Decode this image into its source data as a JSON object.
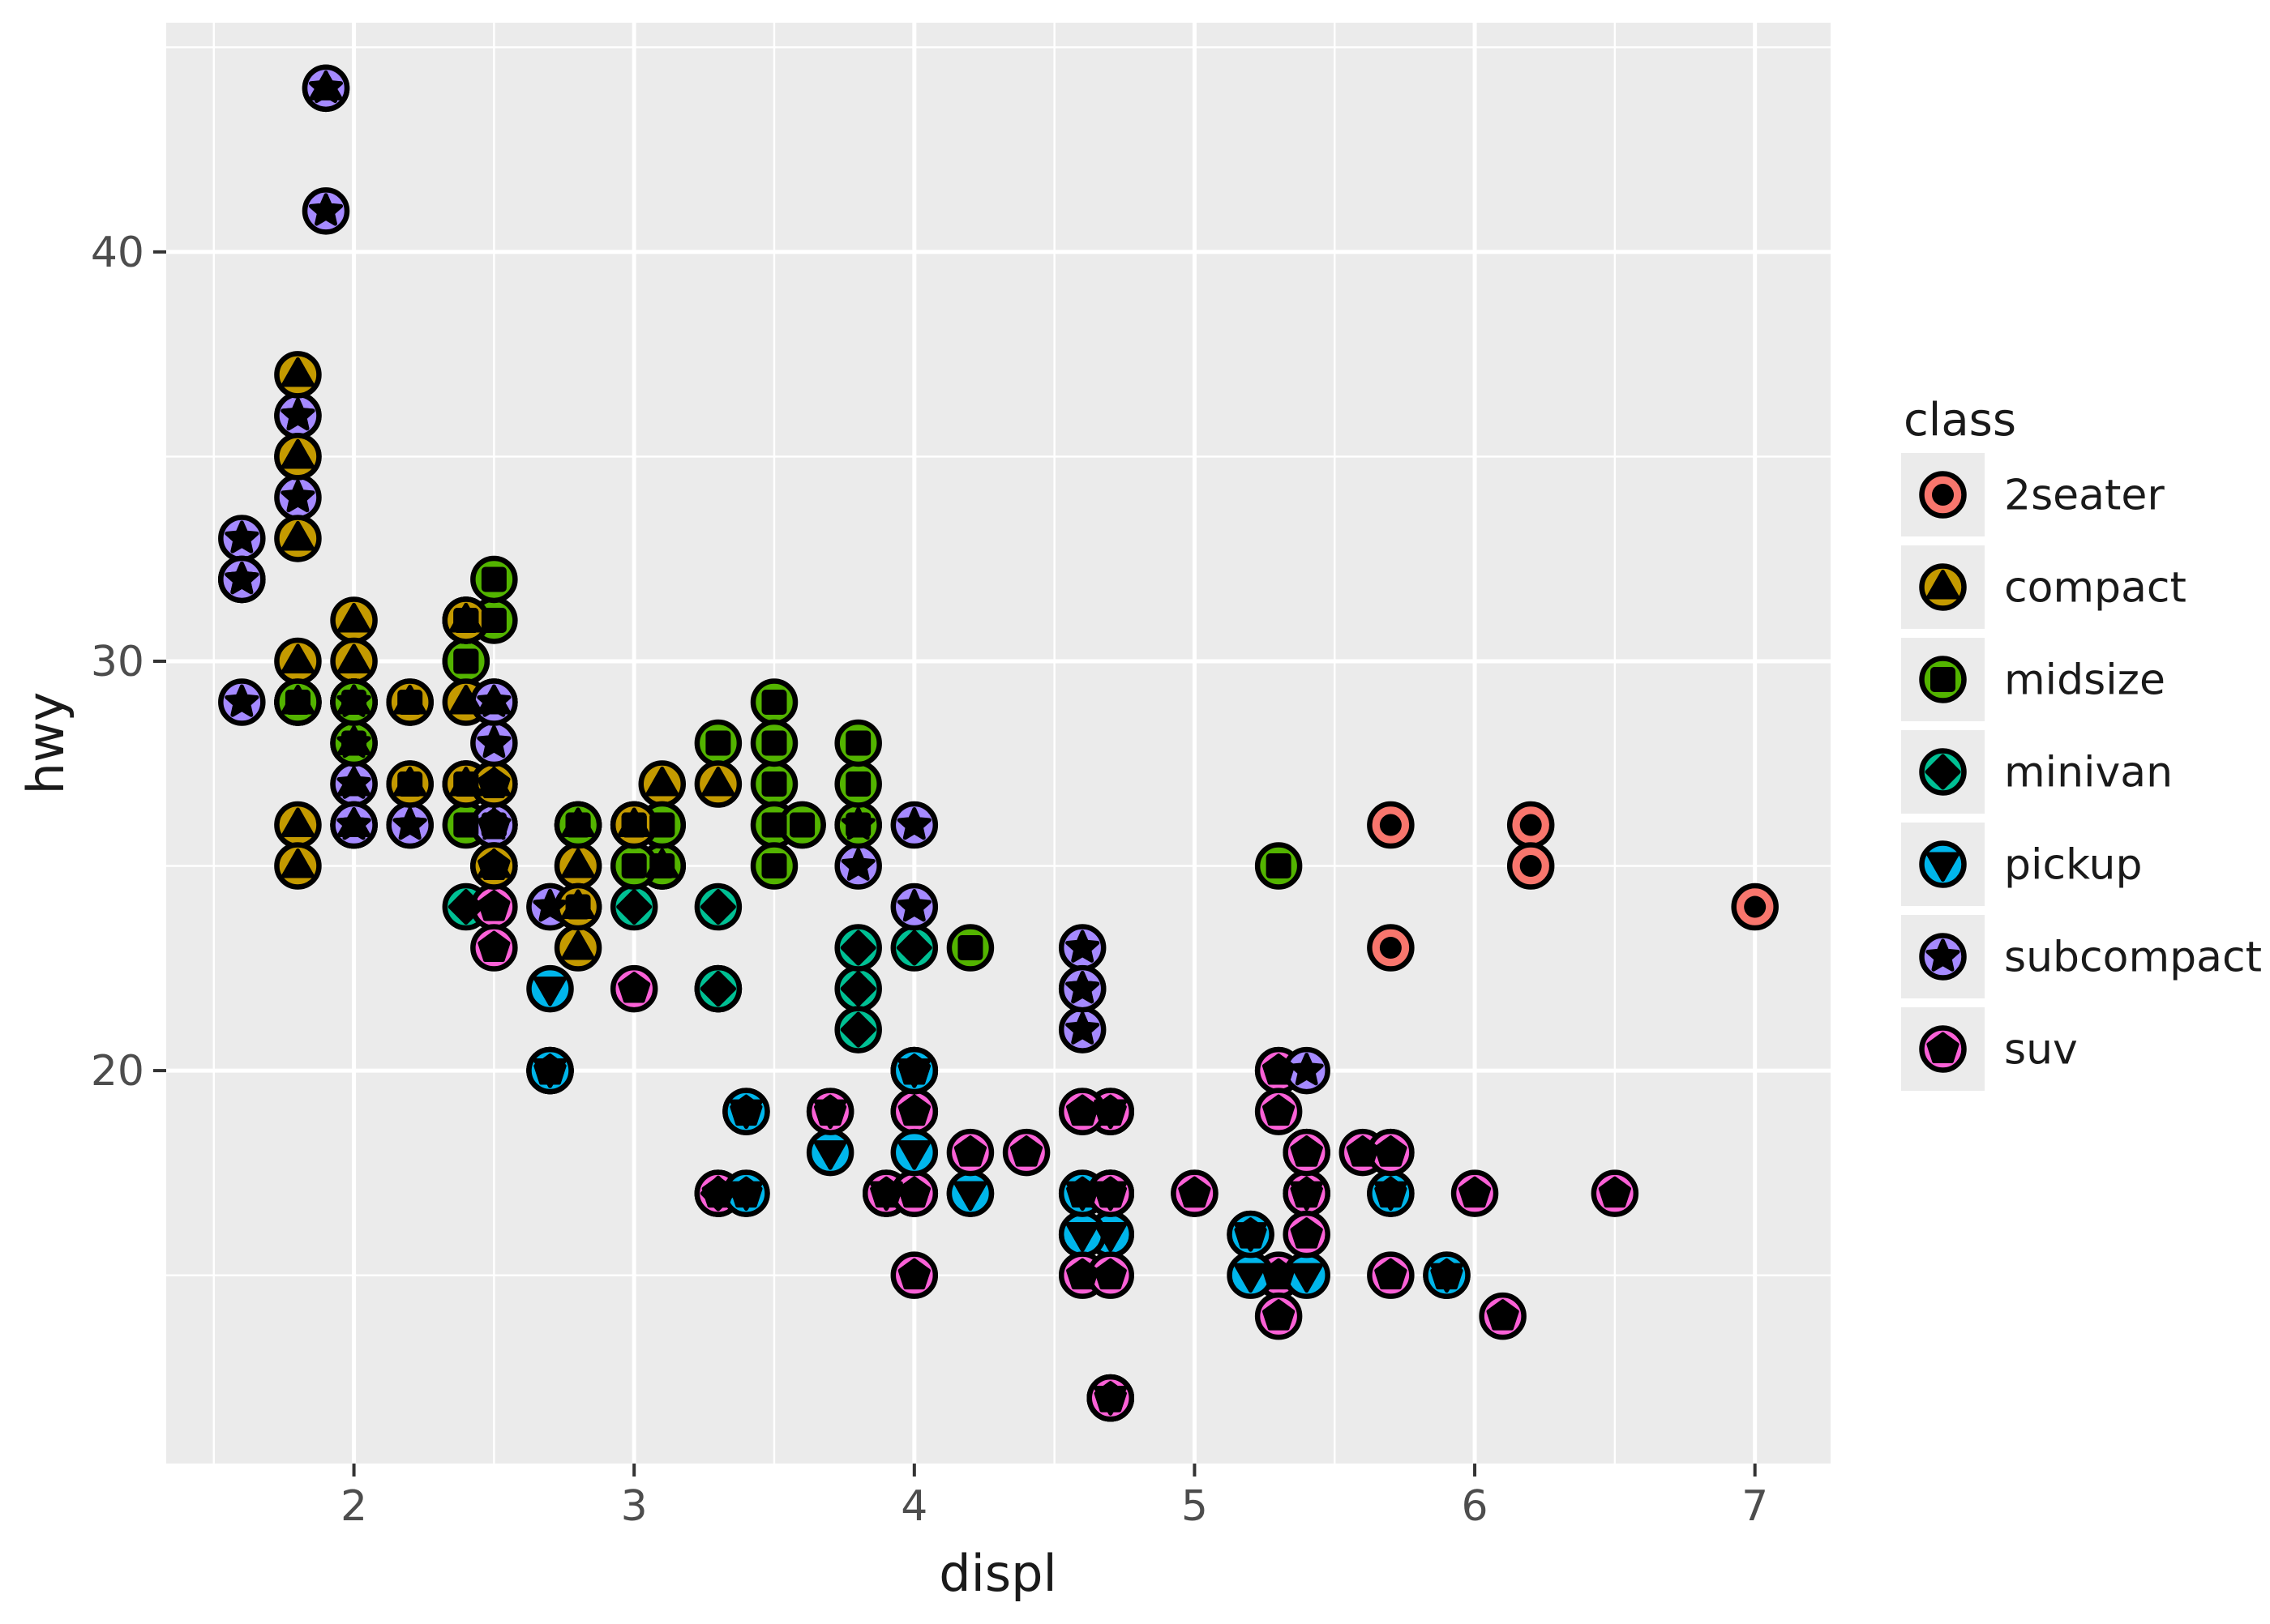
{
  "chart_data": {
    "type": "scatter",
    "title": "",
    "xlabel": "displ",
    "ylabel": "hwy",
    "xlim": [
      1.33,
      7.27
    ],
    "ylim": [
      10.4,
      45.6
    ],
    "x_ticks": [
      2,
      3,
      4,
      5,
      6,
      7
    ],
    "x_minor_ticks": [
      1.5,
      2.5,
      3.5,
      4.5,
      5.5,
      6.5
    ],
    "y_ticks": [
      20,
      30,
      40
    ],
    "y_minor_ticks": [
      15,
      25,
      35,
      45
    ],
    "grid": "on",
    "legend_position": "right",
    "legend_title": "class",
    "classes": [
      {
        "label": "2seater",
        "color": "#F8766D",
        "glyph": "circle"
      },
      {
        "label": "compact",
        "color": "#C49A00",
        "glyph": "triangle-up"
      },
      {
        "label": "midsize",
        "color": "#53B400",
        "glyph": "square"
      },
      {
        "label": "minivan",
        "color": "#00C094",
        "glyph": "diamond"
      },
      {
        "label": "pickup",
        "color": "#00B6EB",
        "glyph": "triangle-down"
      },
      {
        "label": "subcompact",
        "color": "#A58AFF",
        "glyph": "star"
      },
      {
        "label": "suv",
        "color": "#FB61D7",
        "glyph": "pentagon"
      }
    ],
    "points": [
      [
        1.8,
        29,
        1
      ],
      [
        1.8,
        29,
        1
      ],
      [
        2.0,
        31,
        1
      ],
      [
        2.0,
        30,
        1
      ],
      [
        2.8,
        26,
        1
      ],
      [
        2.8,
        26,
        1
      ],
      [
        3.1,
        27,
        1
      ],
      [
        1.8,
        26,
        1
      ],
      [
        1.8,
        25,
        1
      ],
      [
        2.0,
        28,
        1
      ],
      [
        2.0,
        27,
        1
      ],
      [
        2.8,
        25,
        1
      ],
      [
        2.8,
        25,
        1
      ],
      [
        3.1,
        25,
        1
      ],
      [
        3.1,
        25,
        1
      ],
      [
        2.8,
        24,
        2
      ],
      [
        3.1,
        25,
        2
      ],
      [
        4.2,
        23,
        2
      ],
      [
        5.3,
        20,
        6
      ],
      [
        5.3,
        15,
        6
      ],
      [
        5.3,
        20,
        6
      ],
      [
        5.7,
        17,
        6
      ],
      [
        6.0,
        17,
        6
      ],
      [
        5.7,
        26,
        0
      ],
      [
        5.7,
        23,
        0
      ],
      [
        6.2,
        26,
        0
      ],
      [
        6.2,
        25,
        0
      ],
      [
        7.0,
        24,
        0
      ],
      [
        5.3,
        14,
        6
      ],
      [
        5.3,
        19,
        6
      ],
      [
        5.7,
        15,
        6
      ],
      [
        6.5,
        17,
        6
      ],
      [
        2.4,
        27,
        2
      ],
      [
        2.4,
        30,
        2
      ],
      [
        3.1,
        26,
        2
      ],
      [
        3.5,
        29,
        2
      ],
      [
        3.6,
        26,
        2
      ],
      [
        2.4,
        24,
        3
      ],
      [
        3.0,
        24,
        3
      ],
      [
        3.3,
        22,
        3
      ],
      [
        3.3,
        22,
        3
      ],
      [
        3.3,
        24,
        3
      ],
      [
        3.3,
        17,
        3
      ],
      [
        3.8,
        22,
        3
      ],
      [
        3.8,
        21,
        3
      ],
      [
        3.8,
        23,
        3
      ],
      [
        4.0,
        23,
        3
      ],
      [
        3.3,
        22,
        3
      ],
      [
        3.7,
        19,
        4
      ],
      [
        3.7,
        18,
        4
      ],
      [
        3.9,
        17,
        4
      ],
      [
        3.9,
        17,
        4
      ],
      [
        4.7,
        19,
        4
      ],
      [
        4.7,
        19,
        4
      ],
      [
        4.7,
        12,
        4
      ],
      [
        3.9,
        17,
        6
      ],
      [
        4.7,
        17,
        6
      ],
      [
        4.7,
        12,
        6
      ],
      [
        4.7,
        17,
        6
      ],
      [
        5.2,
        16,
        6
      ],
      [
        5.9,
        15,
        6
      ],
      [
        4.7,
        16,
        4
      ],
      [
        4.7,
        12,
        4
      ],
      [
        4.7,
        17,
        4
      ],
      [
        4.7,
        17,
        4
      ],
      [
        4.7,
        16,
        4
      ],
      [
        5.2,
        15,
        4
      ],
      [
        5.2,
        16,
        4
      ],
      [
        5.7,
        17,
        4
      ],
      [
        5.9,
        15,
        4
      ],
      [
        4.6,
        17,
        6
      ],
      [
        5.4,
        17,
        6
      ],
      [
        5.4,
        18,
        6
      ],
      [
        4.0,
        17,
        6
      ],
      [
        4.0,
        17,
        6
      ],
      [
        4.0,
        19,
        6
      ],
      [
        4.6,
        19,
        6
      ],
      [
        5.0,
        17,
        6
      ],
      [
        4.2,
        17,
        4
      ],
      [
        4.2,
        17,
        4
      ],
      [
        4.6,
        16,
        4
      ],
      [
        4.6,
        16,
        4
      ],
      [
        4.6,
        17,
        4
      ],
      [
        5.4,
        15,
        4
      ],
      [
        5.4,
        17,
        4
      ],
      [
        3.8,
        26,
        5
      ],
      [
        3.8,
        25,
        5
      ],
      [
        4.0,
        26,
        5
      ],
      [
        4.0,
        24,
        5
      ],
      [
        4.6,
        21,
        5
      ],
      [
        4.6,
        22,
        5
      ],
      [
        4.6,
        23,
        5
      ],
      [
        4.6,
        22,
        5
      ],
      [
        5.4,
        20,
        5
      ],
      [
        1.6,
        33,
        5
      ],
      [
        1.6,
        32,
        5
      ],
      [
        1.6,
        32,
        5
      ],
      [
        1.6,
        29,
        5
      ],
      [
        1.6,
        32,
        5
      ],
      [
        1.8,
        34,
        5
      ],
      [
        1.8,
        36,
        5
      ],
      [
        1.8,
        36,
        5
      ],
      [
        2.0,
        29,
        5
      ],
      [
        2.4,
        26,
        2
      ],
      [
        2.4,
        27,
        2
      ],
      [
        2.4,
        30,
        2
      ],
      [
        2.4,
        31,
        2
      ],
      [
        2.5,
        26,
        2
      ],
      [
        2.5,
        26,
        2
      ],
      [
        3.3,
        28,
        2
      ],
      [
        2.0,
        26,
        5
      ],
      [
        2.0,
        29,
        5
      ],
      [
        2.0,
        28,
        5
      ],
      [
        2.0,
        27,
        5
      ],
      [
        2.7,
        24,
        5
      ],
      [
        2.7,
        24,
        5
      ],
      [
        3.0,
        22,
        6
      ],
      [
        3.7,
        19,
        6
      ],
      [
        4.0,
        20,
        6
      ],
      [
        4.7,
        17,
        6
      ],
      [
        4.7,
        12,
        6
      ],
      [
        4.7,
        19,
        6
      ],
      [
        5.7,
        18,
        6
      ],
      [
        6.1,
        14,
        6
      ],
      [
        4.0,
        15,
        6
      ],
      [
        4.2,
        18,
        6
      ],
      [
        4.4,
        18,
        6
      ],
      [
        4.6,
        15,
        6
      ],
      [
        5.4,
        17,
        6
      ],
      [
        5.4,
        16,
        6
      ],
      [
        5.4,
        18,
        6
      ],
      [
        4.0,
        17,
        6
      ],
      [
        4.0,
        19,
        6
      ],
      [
        4.6,
        19,
        6
      ],
      [
        5.0,
        17,
        6
      ],
      [
        2.4,
        29,
        1
      ],
      [
        2.4,
        27,
        1
      ],
      [
        2.5,
        31,
        2
      ],
      [
        2.5,
        32,
        2
      ],
      [
        3.5,
        27,
        2
      ],
      [
        3.5,
        26,
        2
      ],
      [
        3.0,
        26,
        2
      ],
      [
        3.0,
        25,
        2
      ],
      [
        3.5,
        25,
        2
      ],
      [
        3.3,
        17,
        6
      ],
      [
        3.3,
        17,
        6
      ],
      [
        4.0,
        20,
        6
      ],
      [
        5.6,
        18,
        6
      ],
      [
        3.1,
        26,
        2
      ],
      [
        3.8,
        26,
        2
      ],
      [
        3.8,
        27,
        2
      ],
      [
        3.8,
        28,
        2
      ],
      [
        5.3,
        25,
        2
      ],
      [
        2.5,
        25,
        6
      ],
      [
        2.5,
        24,
        6
      ],
      [
        2.5,
        27,
        6
      ],
      [
        2.5,
        25,
        6
      ],
      [
        2.5,
        26,
        6
      ],
      [
        2.5,
        23,
        6
      ],
      [
        2.2,
        26,
        5
      ],
      [
        2.2,
        26,
        5
      ],
      [
        2.5,
        26,
        5
      ],
      [
        2.5,
        26,
        5
      ],
      [
        2.5,
        25,
        1
      ],
      [
        2.5,
        27,
        1
      ],
      [
        2.5,
        25,
        1
      ],
      [
        2.5,
        27,
        1
      ],
      [
        2.7,
        20,
        6
      ],
      [
        2.7,
        20,
        6
      ],
      [
        3.4,
        19,
        6
      ],
      [
        3.4,
        17,
        6
      ],
      [
        4.0,
        20,
        6
      ],
      [
        4.7,
        17,
        6
      ],
      [
        2.2,
        29,
        2
      ],
      [
        2.2,
        27,
        2
      ],
      [
        2.4,
        31,
        2
      ],
      [
        2.4,
        31,
        2
      ],
      [
        3.0,
        26,
        2
      ],
      [
        3.0,
        26,
        2
      ],
      [
        3.5,
        28,
        2
      ],
      [
        2.2,
        27,
        1
      ],
      [
        2.2,
        29,
        1
      ],
      [
        2.4,
        31,
        1
      ],
      [
        2.4,
        31,
        1
      ],
      [
        3.0,
        26,
        1
      ],
      [
        3.3,
        27,
        1
      ],
      [
        1.8,
        30,
        1
      ],
      [
        1.8,
        33,
        1
      ],
      [
        1.8,
        35,
        1
      ],
      [
        1.8,
        37,
        1
      ],
      [
        1.8,
        35,
        1
      ],
      [
        4.7,
        15,
        6
      ],
      [
        5.7,
        18,
        6
      ],
      [
        2.7,
        20,
        4
      ],
      [
        2.7,
        20,
        4
      ],
      [
        2.7,
        22,
        4
      ],
      [
        3.4,
        17,
        4
      ],
      [
        3.4,
        19,
        4
      ],
      [
        4.0,
        18,
        4
      ],
      [
        4.0,
        20,
        4
      ],
      [
        2.0,
        29,
        1
      ],
      [
        2.0,
        26,
        1
      ],
      [
        2.0,
        29,
        1
      ],
      [
        2.0,
        29,
        1
      ],
      [
        2.8,
        24,
        1
      ],
      [
        1.9,
        44,
        1
      ],
      [
        2.0,
        29,
        1
      ],
      [
        2.0,
        26,
        1
      ],
      [
        2.0,
        29,
        1
      ],
      [
        2.0,
        29,
        1
      ],
      [
        2.5,
        29,
        1
      ],
      [
        2.5,
        29,
        1
      ],
      [
        2.8,
        23,
        1
      ],
      [
        2.8,
        24,
        1
      ],
      [
        1.9,
        44,
        5
      ],
      [
        1.9,
        41,
        5
      ],
      [
        2.0,
        29,
        5
      ],
      [
        2.0,
        26,
        5
      ],
      [
        2.5,
        28,
        5
      ],
      [
        2.5,
        29,
        5
      ],
      [
        1.8,
        29,
        2
      ],
      [
        1.8,
        29,
        2
      ],
      [
        2.0,
        28,
        2
      ],
      [
        2.0,
        29,
        2
      ],
      [
        2.8,
        26,
        2
      ],
      [
        2.8,
        26,
        2
      ],
      [
        3.6,
        26,
        2
      ]
    ]
  },
  "colors": {
    "page_background": "#FFFFFF",
    "panel_background": "#EBEBEB",
    "gridline": "#FFFFFF",
    "tick_mark": "#333333",
    "tick_label": "#4D4D4D",
    "axis_title": "#1A1A1A",
    "legend_text": "#1A1A1A",
    "marker_outline": "#000000",
    "glyph": "#000000",
    "legend_key_background": "#EBEBEB"
  }
}
